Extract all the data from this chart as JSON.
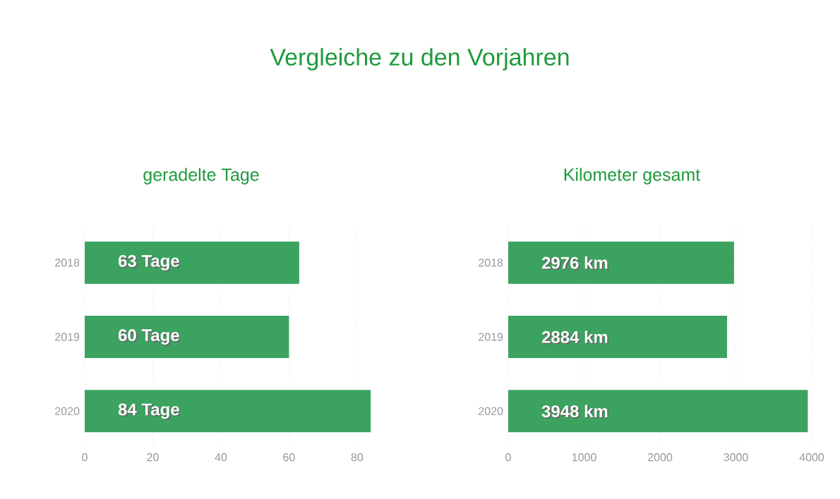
{
  "chart_data": [
    {
      "type": "bar",
      "orientation": "horizontal",
      "title": "geradelte Tage",
      "annotations": [
        "Vergleiche zu den Vorjahren"
      ],
      "categories": [
        "2018",
        "2019",
        "2020"
      ],
      "values": [
        63,
        60,
        84
      ],
      "value_labels": [
        "63 Tage",
        "60 Tage",
        "84 Tage"
      ],
      "color": "#3ba35f",
      "xlim": [
        0,
        85
      ],
      "xticks": [
        0,
        20,
        40,
        60,
        80
      ],
      "grid": "x"
    },
    {
      "type": "bar",
      "orientation": "horizontal",
      "title": "Kilometer gesamt",
      "categories": [
        "2018",
        "2019",
        "2020"
      ],
      "values": [
        2976,
        2884,
        3948
      ],
      "value_labels": [
        "2976 km",
        "2884 km",
        "3948 km"
      ],
      "color": "#3ba35f",
      "xlim": [
        0,
        4000
      ],
      "xticks": [
        0,
        1000,
        2000,
        3000,
        4000
      ],
      "grid": "x"
    }
  ]
}
